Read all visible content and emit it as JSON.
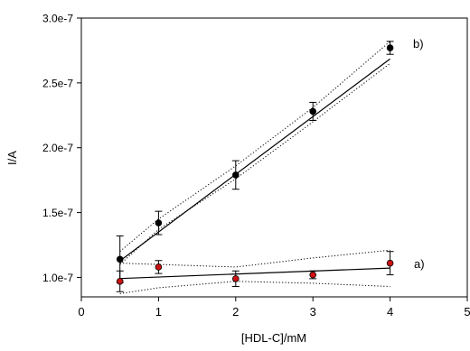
{
  "chart_data": {
    "type": "scatter",
    "xlabel": "[HDL-C]/mM",
    "ylabel": "I/A",
    "xlim": [
      0,
      5
    ],
    "ylim": [
      8.5e-08,
      3e-07
    ],
    "x_ticks": [
      "0",
      "1",
      "2",
      "3",
      "4",
      "5"
    ],
    "y_ticks": [
      "1.0e-7",
      "1.5e-7",
      "2.0e-7",
      "2.5e-7",
      "3.0e-7"
    ],
    "y_tick_values": [
      1e-07,
      1.5e-07,
      2e-07,
      2.5e-07,
      3e-07
    ],
    "grid": false,
    "series": [
      {
        "name": "b)",
        "marker_color": "#000000",
        "x": [
          0.5,
          1,
          2,
          3,
          4
        ],
        "y": [
          1.14e-07,
          1.42e-07,
          1.79e-07,
          2.28e-07,
          2.77e-07
        ],
        "y_err": [
          1.8e-08,
          9e-09,
          1.1e-08,
          7e-09,
          5e-09
        ],
        "fit": {
          "slope": 4.45e-08,
          "intercept": 9.05e-08
        },
        "ci_lower": [
          1.1e-07,
          1.37e-07,
          1.76e-07,
          2.2e-07,
          2.65e-07
        ],
        "ci_upper": [
          1.2e-07,
          1.45e-07,
          1.86e-07,
          2.31e-07,
          2.82e-07
        ]
      },
      {
        "name": "a)",
        "marker_color": "#cc1111",
        "x": [
          0.5,
          1,
          2,
          3,
          4
        ],
        "y": [
          9.7e-08,
          1.08e-07,
          9.9e-08,
          1.02e-07,
          1.11e-07
        ],
        "y_err": [
          8e-09,
          5e-09,
          6e-09,
          3e-09,
          9e-09
        ],
        "fit": {
          "slope": 2.3e-09,
          "intercept": 9.8e-08
        },
        "ci_lower": [
          8.75e-08,
          9.2e-08,
          9.7e-08,
          9.55e-08,
          9.3e-08
        ],
        "ci_upper": [
          1.11e-07,
          1.1e-07,
          1.08e-07,
          1.15e-07,
          1.21e-07
        ]
      }
    ]
  }
}
